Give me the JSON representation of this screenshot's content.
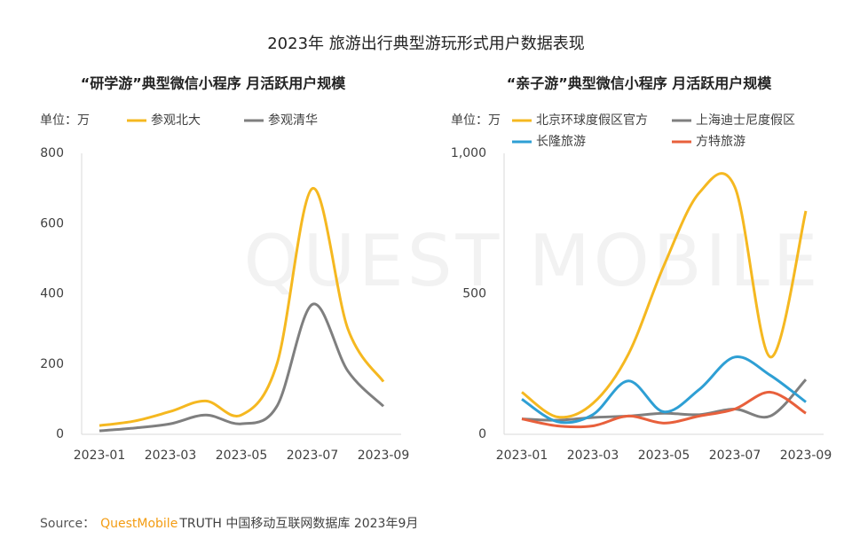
{
  "title": "2023年 旅游出行典型游玩形式用户数据表现",
  "watermark": "QUEST MOBILE",
  "chart_data": [
    {
      "type": "line",
      "title": "“研学游”典型微信小程序 月活跃用户规模",
      "unit_label": "单位：万",
      "categories": [
        "2023-01",
        null,
        "2023-03",
        null,
        "2023-05",
        null,
        "2023-07",
        null,
        "2023-09"
      ],
      "ylim": [
        0,
        800
      ],
      "yticks": [
        0,
        200,
        400,
        600,
        800
      ],
      "series": [
        {
          "name": "参观北大",
          "color": "#f5b820",
          "values": [
            25,
            38,
            65,
            95,
            55,
            200,
            700,
            300,
            150
          ]
        },
        {
          "name": "参观清华",
          "color": "#7f7f7f",
          "values": [
            10,
            18,
            30,
            55,
            30,
            80,
            370,
            180,
            80
          ]
        }
      ]
    },
    {
      "type": "line",
      "title": "“亲子游”典型微信小程序 月活跃用户规模",
      "unit_label": "单位：万",
      "categories": [
        "2023-01",
        null,
        "2023-03",
        null,
        "2023-05",
        null,
        "2023-07",
        null,
        "2023-09"
      ],
      "ylim": [
        0,
        1000
      ],
      "yticks": [
        0,
        500,
        {
          "value": 1000,
          "label": "1,000"
        }
      ],
      "series": [
        {
          "name": "北京环球度假区官方",
          "color": "#f5b820",
          "values": [
            150,
            62,
            110,
            285,
            600,
            860,
            880,
            275,
            795
          ]
        },
        {
          "name": "上海迪士尼度假区",
          "color": "#7f7f7f",
          "values": [
            55,
            50,
            60,
            65,
            75,
            70,
            90,
            65,
            195
          ]
        },
        {
          "name": "长隆旅游",
          "color": "#2e9fd4",
          "values": [
            125,
            45,
            70,
            190,
            80,
            160,
            275,
            210,
            115
          ]
        },
        {
          "name": "方特旅游",
          "color": "#e8603c",
          "values": [
            55,
            30,
            30,
            65,
            40,
            65,
            90,
            150,
            75
          ]
        }
      ]
    }
  ],
  "source_label": "Source：",
  "source_brand": "QuestMobile",
  "source_text": "TRUTH 中国移动互联网数据库 2023年9月"
}
